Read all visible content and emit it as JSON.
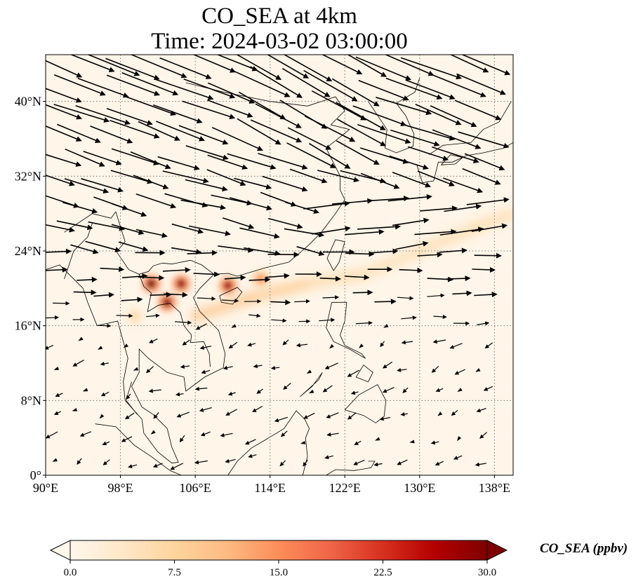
{
  "chart_data": {
    "type": "map-vector",
    "title": "CO_SEA at 4km",
    "subtitle": "Time: 2024-03-02 03:00:00",
    "lon_range": [
      90,
      140
    ],
    "lat_range": [
      0,
      45
    ],
    "x_ticks": [
      {
        "value": 90,
        "label": "90°E"
      },
      {
        "value": 98,
        "label": "98°E"
      },
      {
        "value": 106,
        "label": "106°E"
      },
      {
        "value": 114,
        "label": "114°E"
      },
      {
        "value": 122,
        "label": "122°E"
      },
      {
        "value": 130,
        "label": "130°E"
      },
      {
        "value": 138,
        "label": "138°E"
      }
    ],
    "y_ticks": [
      {
        "value": 0,
        "label": "0°"
      },
      {
        "value": 8,
        "label": "8°N"
      },
      {
        "value": 16,
        "label": "16°N"
      },
      {
        "value": 24,
        "label": "24°N"
      },
      {
        "value": 32,
        "label": "32°N"
      },
      {
        "value": 40,
        "label": "40°N"
      }
    ],
    "colorbar": {
      "label": "CO_SEA (ppbv)",
      "min": 0,
      "max": 30,
      "extend": "both",
      "colormap": "OrRd",
      "stops": [
        "#fff7ec",
        "#fee8c8",
        "#fdd49e",
        "#fdbb84",
        "#fc8d59",
        "#ef6548",
        "#d7301f",
        "#b30000",
        "#7f0000"
      ],
      "ticks": [
        {
          "value": 0,
          "label": "0.0"
        },
        {
          "value": 7.5,
          "label": "7.5"
        },
        {
          "value": 15,
          "label": "15.0"
        },
        {
          "value": 22.5,
          "label": "22.5"
        },
        {
          "value": 30,
          "label": "30.0"
        }
      ]
    },
    "hotspots": [
      {
        "lon": 101.3,
        "lat": 20.5,
        "value": 30
      },
      {
        "lon": 104.5,
        "lat": 20.5,
        "value": 28
      },
      {
        "lon": 103.0,
        "lat": 18.5,
        "value": 29
      },
      {
        "lon": 109.5,
        "lat": 20.3,
        "value": 27
      },
      {
        "lon": 113.0,
        "lat": 21.0,
        "value": 14
      },
      {
        "lon": 99.5,
        "lat": 17.0,
        "value": 6
      }
    ],
    "plume": [
      {
        "lon": 106,
        "lat": 17,
        "value": 8
      },
      {
        "lon": 112,
        "lat": 19,
        "value": 10
      },
      {
        "lon": 118,
        "lat": 20.5,
        "value": 7
      },
      {
        "lon": 124,
        "lat": 21.5,
        "value": 5
      },
      {
        "lon": 130,
        "lat": 24,
        "value": 5
      },
      {
        "lon": 136,
        "lat": 26.5,
        "value": 6
      },
      {
        "lon": 140,
        "lat": 28,
        "value": 5
      }
    ],
    "wind_field_description": "Strong westerly / north-westerly flow north of about 22°N, weak easterly flow over the tropics south of about 16°N"
  }
}
